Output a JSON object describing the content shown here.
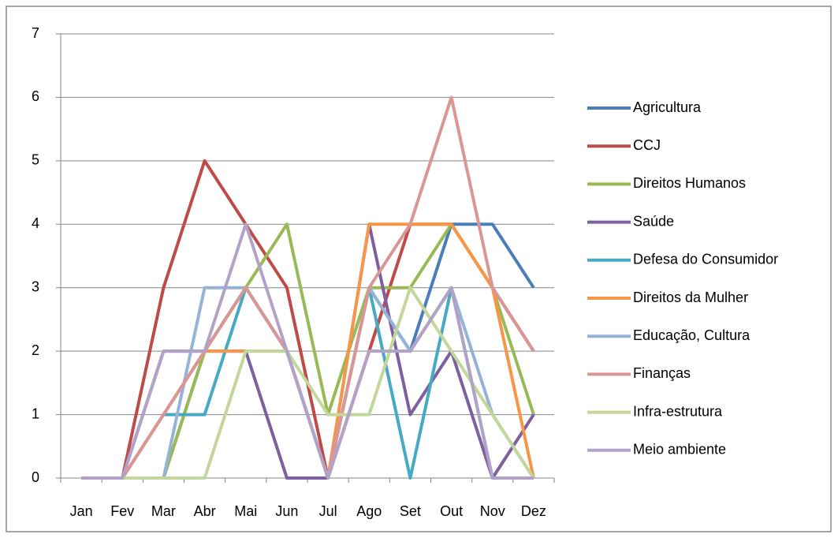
{
  "chart_data": {
    "type": "line",
    "categories": [
      "Jan",
      "Fev",
      "Mar",
      "Abr",
      "Mai",
      "Jun",
      "Jul",
      "Ago",
      "Set",
      "Out",
      "Nov",
      "Dez"
    ],
    "series": [
      {
        "name": "Agricultura",
        "color": "#4a7ebb",
        "values": [
          0,
          0,
          0,
          2,
          3,
          2,
          0,
          3,
          2,
          4,
          4,
          3
        ]
      },
      {
        "name": "CCJ",
        "color": "#be4b48",
        "values": [
          0,
          0,
          3,
          5,
          4,
          3,
          0,
          2,
          4,
          4,
          3,
          2
        ]
      },
      {
        "name": "Direitos Humanos",
        "color": "#98b954",
        "values": [
          0,
          0,
          0,
          2,
          3,
          4,
          1,
          3,
          3,
          4,
          3,
          1
        ]
      },
      {
        "name": "Saúde",
        "color": "#7d60a0",
        "values": [
          0,
          0,
          2,
          2,
          2,
          0,
          0,
          4,
          1,
          2,
          0,
          1
        ]
      },
      {
        "name": "Defesa do Consumidor",
        "color": "#46aac5",
        "values": [
          0,
          0,
          1,
          1,
          3,
          2,
          0,
          3,
          0,
          3,
          0,
          0
        ]
      },
      {
        "name": "Direitos da Mulher",
        "color": "#f79646",
        "values": [
          0,
          0,
          1,
          2,
          2,
          2,
          0,
          4,
          4,
          4,
          3,
          0
        ]
      },
      {
        "name": "Educação, Cultura",
        "color": "#95b3d7",
        "values": [
          0,
          0,
          0,
          3,
          3,
          2,
          0,
          3,
          2,
          3,
          1,
          0
        ]
      },
      {
        "name": "Finanças",
        "color": "#d99694",
        "values": [
          0,
          0,
          1,
          2,
          3,
          2,
          0,
          3,
          4,
          6,
          3,
          2
        ]
      },
      {
        "name": "Infra-estrutura",
        "color": "#c3d69b",
        "values": [
          0,
          0,
          0,
          0,
          2,
          2,
          1,
          1,
          3,
          2,
          1,
          0
        ]
      },
      {
        "name": "Meio ambiente",
        "color": "#b3a2c7",
        "values": [
          0,
          0,
          2,
          2,
          4,
          2,
          0,
          2,
          2,
          3,
          0,
          0
        ]
      }
    ],
    "ylim": [
      0,
      7
    ],
    "yticks": [
      0,
      1,
      2,
      3,
      4,
      5,
      6,
      7
    ],
    "grid": true,
    "legend": "right"
  }
}
